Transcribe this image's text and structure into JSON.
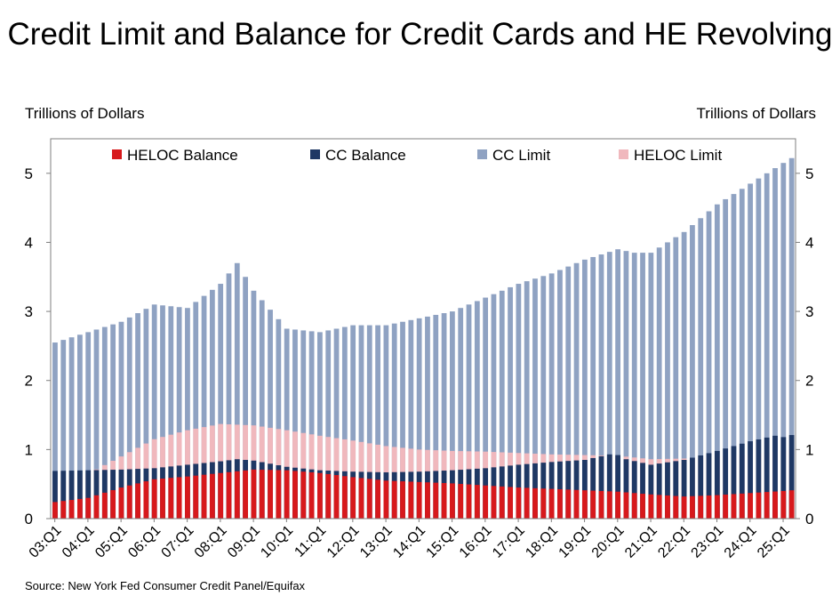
{
  "chart_data": {
    "type": "bar",
    "title": "Credit Limit and Balance for Credit Cards and HE Revolving",
    "ylabel_left": "Trillions of Dollars",
    "ylabel_right": "Trillions of Dollars",
    "source": "Source: New York Fed Consumer Credit Panel/Equifax",
    "ylim": [
      0,
      5.5
    ],
    "yticks": [
      "0",
      "1",
      "2",
      "3",
      "4",
      "5"
    ],
    "x_tick_labels": [
      "03:Q1",
      "04:Q1",
      "05:Q1",
      "06:Q1",
      "07:Q1",
      "08:Q1",
      "09:Q1",
      "10:Q1",
      "11:Q1",
      "12:Q1",
      "13:Q1",
      "14:Q1",
      "15:Q1",
      "16:Q1",
      "17:Q1",
      "18:Q1",
      "19:Q1",
      "20:Q1",
      "21:Q1",
      "22:Q1",
      "23:Q1",
      "24:Q1",
      "25:Q1"
    ],
    "legend": [
      "HELOC Balance",
      "CC Balance",
      "CC Limit",
      "HELOC Limit"
    ],
    "legend_placement": "top",
    "grid": false,
    "colors": {
      "HELOC Balance": "#d7191c",
      "CC Balance": "#1f3864",
      "CC Limit": "#8fa2c2",
      "HELOC Limit": "#f0b8bd"
    },
    "note": "Stacked bars per quarter: HELOC Balance on top of CC Balance; CC Limit and HELOC Limit drawn as background bars.",
    "cc_limit_anchors": {
      "03:Q1": 2.55,
      "05:Q1": 2.85,
      "06:Q1": 3.1,
      "07:Q1": 3.05,
      "08:Q1": 3.4,
      "08:Q3": 3.7,
      "09:Q1": 3.3,
      "10:Q1": 2.75,
      "11:Q1": 2.7,
      "12:Q1": 2.8,
      "13:Q1": 2.8,
      "14:Q1": 2.9,
      "15:Q1": 3.0,
      "16:Q1": 3.2,
      "17:Q1": 3.4,
      "18:Q1": 3.55,
      "19:Q1": 3.75,
      "20:Q1": 3.9,
      "20:Q3": 3.85,
      "21:Q1": 3.85,
      "22:Q1": 4.15,
      "23:Q1": 4.55,
      "24:Q1": 4.85,
      "25:Q1": 5.15,
      "25:Q2": 5.22
    },
    "heloc_limit_anchors": {
      "03:Q1": 0.5,
      "04:Q1": 0.65,
      "05:Q1": 0.9,
      "06:Q1": 1.15,
      "07:Q1": 1.28,
      "08:Q1": 1.37,
      "09:Q1": 1.35,
      "10:Q1": 1.28,
      "11:Q1": 1.2,
      "12:Q1": 1.13,
      "13:Q1": 1.05,
      "14:Q1": 1.0,
      "15:Q1": 0.98,
      "16:Q1": 0.97,
      "17:Q1": 0.95,
      "18:Q1": 0.93,
      "19:Q1": 0.92,
      "20:Q1": 0.91,
      "21:Q1": 0.86,
      "22:Q1": 0.87,
      "23:Q1": 0.9,
      "24:Q1": 0.93,
      "25:Q1": 0.98,
      "25:Q2": 1.0
    },
    "cc_balance_anchors": {
      "03:Q1": 0.69,
      "05:Q1": 0.71,
      "06:Q1": 0.73,
      "07:Q1": 0.78,
      "08:Q1": 0.83,
      "08:Q3": 0.86,
      "09:Q1": 0.84,
      "10:Q1": 0.75,
      "11:Q1": 0.7,
      "12:Q1": 0.68,
      "13:Q1": 0.67,
      "14:Q1": 0.68,
      "15:Q1": 0.7,
      "16:Q1": 0.73,
      "17:Q1": 0.78,
      "18:Q1": 0.82,
      "19:Q1": 0.85,
      "19:Q4": 0.93,
      "20:Q1": 0.92,
      "20:Q2": 0.86,
      "21:Q1": 0.78,
      "22:Q1": 0.85,
      "23:Q1": 0.98,
      "24:Q1": 1.12,
      "24:Q4": 1.2,
      "25:Q1": 1.18,
      "25:Q2": 1.21
    },
    "heloc_balance_anchors": {
      "03:Q1": 0.24,
      "04:Q1": 0.3,
      "05:Q1": 0.45,
      "06:Q1": 0.57,
      "07:Q1": 0.61,
      "08:Q1": 0.66,
      "09:Q1": 0.71,
      "10:Q1": 0.7,
      "11:Q1": 0.66,
      "12:Q1": 0.6,
      "13:Q1": 0.55,
      "14:Q1": 0.53,
      "15:Q1": 0.51,
      "16:Q1": 0.48,
      "17:Q1": 0.45,
      "18:Q1": 0.43,
      "19:Q1": 0.41,
      "20:Q1": 0.39,
      "21:Q1": 0.35,
      "22:Q1": 0.32,
      "23:Q1": 0.34,
      "24:Q1": 0.37,
      "25:Q1": 0.4,
      "25:Q2": 0.41
    }
  }
}
